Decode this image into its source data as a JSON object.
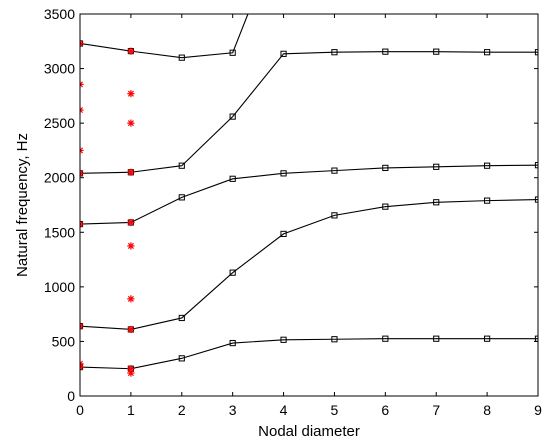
{
  "chart_data": {
    "type": "line",
    "title": "",
    "xlabel": "Nodal diameter",
    "ylabel": "Natural frequency, Hz",
    "xlim": [
      0,
      9
    ],
    "ylim": [
      0,
      3500
    ],
    "xticks": [
      0,
      1,
      2,
      3,
      4,
      5,
      6,
      7,
      8,
      9
    ],
    "yticks": [
      0,
      500,
      1000,
      1500,
      2000,
      2500,
      3000,
      3500
    ],
    "grid": false,
    "legend": "none",
    "series": [
      {
        "values": [
          [
            0,
            265
          ],
          [
            1,
            250
          ],
          [
            2,
            345
          ],
          [
            3,
            485
          ],
          [
            4,
            515
          ],
          [
            5,
            520
          ],
          [
            6,
            525
          ],
          [
            7,
            525
          ],
          [
            8,
            525
          ],
          [
            9,
            525
          ]
        ],
        "color": "#000000",
        "marker": "square"
      },
      {
        "values": [
          [
            0,
            640
          ],
          [
            1,
            610
          ],
          [
            2,
            715
          ],
          [
            3,
            1130
          ],
          [
            4,
            1485
          ],
          [
            5,
            1655
          ],
          [
            6,
            1735
          ],
          [
            7,
            1775
          ],
          [
            8,
            1790
          ],
          [
            9,
            1800
          ]
        ],
        "color": "#000000",
        "marker": "square"
      },
      {
        "values": [
          [
            0,
            1575
          ],
          [
            1,
            1590
          ],
          [
            2,
            1820
          ],
          [
            3,
            1990
          ],
          [
            4,
            2040
          ],
          [
            5,
            2065
          ],
          [
            6,
            2090
          ],
          [
            7,
            2100
          ],
          [
            8,
            2110
          ],
          [
            9,
            2115
          ]
        ],
        "color": "#000000",
        "marker": "square"
      },
      {
        "values": [
          [
            0,
            2040
          ],
          [
            1,
            2050
          ],
          [
            2,
            2110
          ],
          [
            3,
            2560
          ],
          [
            4,
            3135
          ],
          [
            5,
            3150
          ],
          [
            6,
            3155
          ],
          [
            7,
            3155
          ],
          [
            8,
            3150
          ],
          [
            9,
            3150
          ]
        ],
        "color": "#000000",
        "marker": "square"
      },
      {
        "values": [
          [
            0,
            3230
          ],
          [
            1,
            3160
          ],
          [
            2,
            3100
          ],
          [
            3,
            3145
          ],
          [
            3.3,
            3500
          ]
        ],
        "color": "#000000",
        "marker": "square"
      },
      {
        "values": [
          [
            0,
            265
          ],
          [
            0,
            295
          ],
          [
            0,
            640
          ],
          [
            0,
            1575
          ],
          [
            0,
            2040
          ],
          [
            0,
            2250
          ],
          [
            0,
            2620
          ],
          [
            0,
            2855
          ],
          [
            0,
            3230
          ],
          [
            1,
            210
          ],
          [
            1,
            250
          ],
          [
            1,
            610
          ],
          [
            1,
            890
          ],
          [
            1,
            1375
          ],
          [
            1,
            1590
          ],
          [
            1,
            2050
          ],
          [
            1,
            2500
          ],
          [
            1,
            2770
          ],
          [
            1,
            3160
          ]
        ],
        "color": "#ff0000",
        "marker": "asterisk"
      }
    ]
  }
}
